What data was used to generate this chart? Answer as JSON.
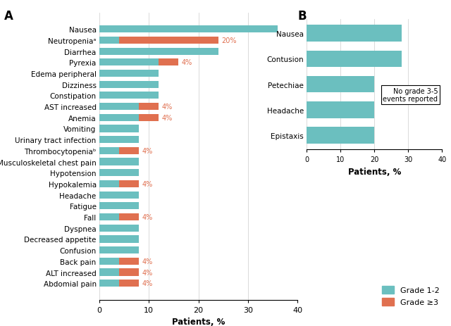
{
  "panel_a": {
    "categories": [
      "Nausea",
      "Neutropeniaᵃ",
      "Diarrhea",
      "Pyrexia",
      "Edema peripheral",
      "Dizziness",
      "Constipation",
      "AST increased",
      "Anemia",
      "Vomiting",
      "Urinary tract infection",
      "Thrombocytopeniaᵇ",
      "Musculoskeletal chest pain",
      "Hypotension",
      "Hypokalemia",
      "Headache",
      "Fatigue",
      "Fall",
      "Dyspnea",
      "Decreased appetite",
      "Confusion",
      "Back pain",
      "ALT increased",
      "Abdomial pain"
    ],
    "grade12": [
      36,
      4,
      24,
      12,
      12,
      12,
      12,
      8,
      8,
      8,
      8,
      4,
      8,
      8,
      4,
      8,
      8,
      4,
      8,
      8,
      8,
      4,
      4,
      4
    ],
    "grade3plus": [
      0,
      20,
      0,
      4,
      0,
      0,
      0,
      4,
      4,
      0,
      0,
      4,
      0,
      0,
      4,
      0,
      0,
      4,
      0,
      0,
      0,
      4,
      4,
      4
    ],
    "xlim": [
      0,
      40
    ],
    "xticks": [
      0,
      10,
      20,
      30,
      40
    ],
    "xlabel": "Patients, %"
  },
  "panel_b": {
    "categories": [
      "Nausea",
      "Contusion",
      "Petechiae",
      "Headache",
      "Epistaxis"
    ],
    "grade12": [
      28,
      28,
      20,
      20,
      20
    ],
    "xlim": [
      0,
      40
    ],
    "xticks": [
      0,
      10,
      20,
      30,
      40
    ],
    "xlabel": "Patients, %",
    "annotation": "No grade 3-5\nevents reported"
  },
  "colors": {
    "grade12": "#6bbfbf",
    "grade3plus": "#e07050"
  },
  "legend": {
    "grade12_label": "Grade 1-2",
    "grade3plus_label": "Grade ≥3"
  }
}
